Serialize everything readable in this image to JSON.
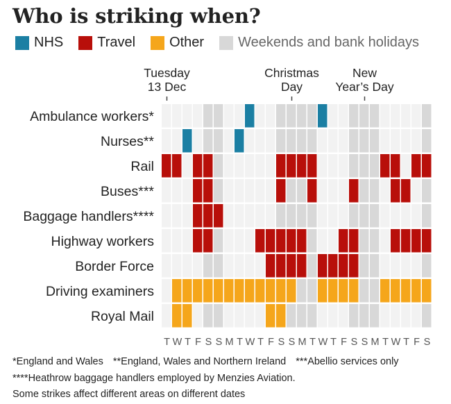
{
  "title": "Who is striking when?",
  "legend": [
    {
      "label": "NHS",
      "color": "#1b7fa3",
      "muted": false
    },
    {
      "label": "Travel",
      "color": "#b80f0a",
      "muted": false
    },
    {
      "label": "Other",
      "color": "#f5a61b",
      "muted": false
    },
    {
      "label": "Weekends and bank holidays",
      "color": "#d8d8d8",
      "muted": true
    }
  ],
  "colors": {
    "NHS": "#1b7fa3",
    "Travel": "#b80f0a",
    "Other": "#f5a61b",
    "holiday": "#d8d8d8",
    "empty": "#f2f2f2"
  },
  "chart_data": {
    "type": "heatmap",
    "title": "Who is striking when?",
    "day_labels": [
      "T",
      "W",
      "T",
      "F",
      "S",
      "S",
      "M",
      "T",
      "W",
      "T",
      "F",
      "S",
      "S",
      "M",
      "T",
      "W",
      "T",
      "F",
      "S",
      "S",
      "M",
      "T",
      "W",
      "T",
      "F",
      "S"
    ],
    "holiday_columns": [
      4,
      5,
      11,
      12,
      13,
      14,
      18,
      19,
      20,
      25
    ],
    "top_annotations": [
      {
        "lines": [
          "Tuesday",
          "13 Dec"
        ],
        "column": 0
      },
      {
        "lines": [
          "Christmas",
          "Day"
        ],
        "column": 12
      },
      {
        "lines": [
          "New",
          "Year’s Day"
        ],
        "column": 19
      }
    ],
    "rows": [
      {
        "label": "Ambulance workers*",
        "sector": "NHS",
        "strike_days": [
          8,
          15
        ]
      },
      {
        "label": "Nurses**",
        "sector": "NHS",
        "strike_days": [
          2,
          7
        ]
      },
      {
        "label": "Rail",
        "sector": "Travel",
        "strike_days": [
          0,
          1,
          3,
          4,
          11,
          12,
          13,
          14,
          21,
          22,
          24,
          25
        ]
      },
      {
        "label": "Buses***",
        "sector": "Travel",
        "strike_days": [
          3,
          4,
          11,
          14,
          18,
          22,
          23
        ]
      },
      {
        "label": "Baggage handlers****",
        "sector": "Travel",
        "strike_days": [
          3,
          4,
          5
        ]
      },
      {
        "label": "Highway workers",
        "sector": "Travel",
        "strike_days": [
          3,
          4,
          9,
          10,
          11,
          12,
          13,
          17,
          18,
          22,
          23,
          24,
          25
        ]
      },
      {
        "label": "Border Force",
        "sector": "Travel",
        "strike_days": [
          10,
          11,
          12,
          13,
          15,
          16,
          17,
          18
        ]
      },
      {
        "label": "Driving examiners",
        "sector": "Other",
        "strike_days": [
          1,
          2,
          3,
          4,
          5,
          6,
          7,
          8,
          9,
          10,
          11,
          12,
          15,
          16,
          17,
          18,
          21,
          22,
          23,
          24,
          25
        ]
      },
      {
        "label": "Royal Mail",
        "sector": "Other",
        "strike_days": [
          1,
          2,
          10,
          11
        ]
      }
    ]
  },
  "footnotes": {
    "line1": [
      "*England and Wales",
      "**England, Wales and Northern Ireland",
      "***Abellio services only"
    ],
    "line2": "****Heathrow baggage handlers employed by Menzies Aviation.",
    "line3": "Some strikes affect different areas on different dates"
  }
}
